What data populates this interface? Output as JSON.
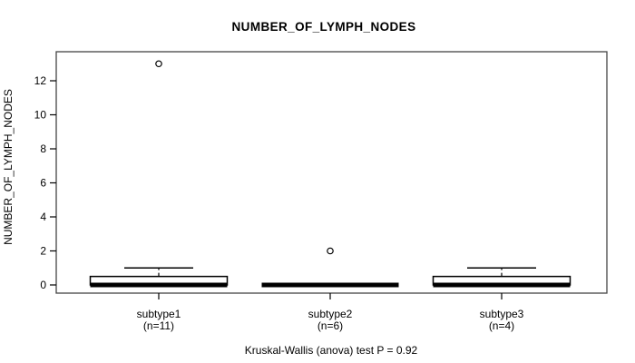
{
  "chart_data": {
    "type": "boxplot",
    "title": "NUMBER_OF_LYMPH_NODES",
    "ylabel": "NUMBER_OF_LYMPH_NODES",
    "xlabel": "",
    "caption": "Kruskal-Wallis (anova) test P = 0.92",
    "test": "Kruskal-Wallis (anova)",
    "p_value": "0.92",
    "ylim": [
      0,
      13.6
    ],
    "yticks": [
      0,
      2,
      4,
      6,
      8,
      10,
      12
    ],
    "grid": false,
    "legend": "none",
    "colors": {
      "box_fill": "#ffffff",
      "line": "#000000",
      "frame": "#444444",
      "text": "#000000"
    },
    "groups": [
      {
        "label": "subtype1",
        "sublabel": "(n=11)",
        "n": 11,
        "min": 0,
        "q1": 0,
        "median": 0,
        "q3": 0.5,
        "whisker_high": 1,
        "outliers": [
          13
        ]
      },
      {
        "label": "subtype2",
        "sublabel": "(n=6)",
        "n": 6,
        "min": 0,
        "q1": 0,
        "median": 0,
        "q3": 0,
        "whisker_high": 0,
        "outliers": [
          2
        ]
      },
      {
        "label": "subtype3",
        "sublabel": "(n=4)",
        "n": 4,
        "min": 0,
        "q1": 0,
        "median": 0,
        "q3": 0.5,
        "whisker_high": 1,
        "outliers": []
      }
    ]
  }
}
